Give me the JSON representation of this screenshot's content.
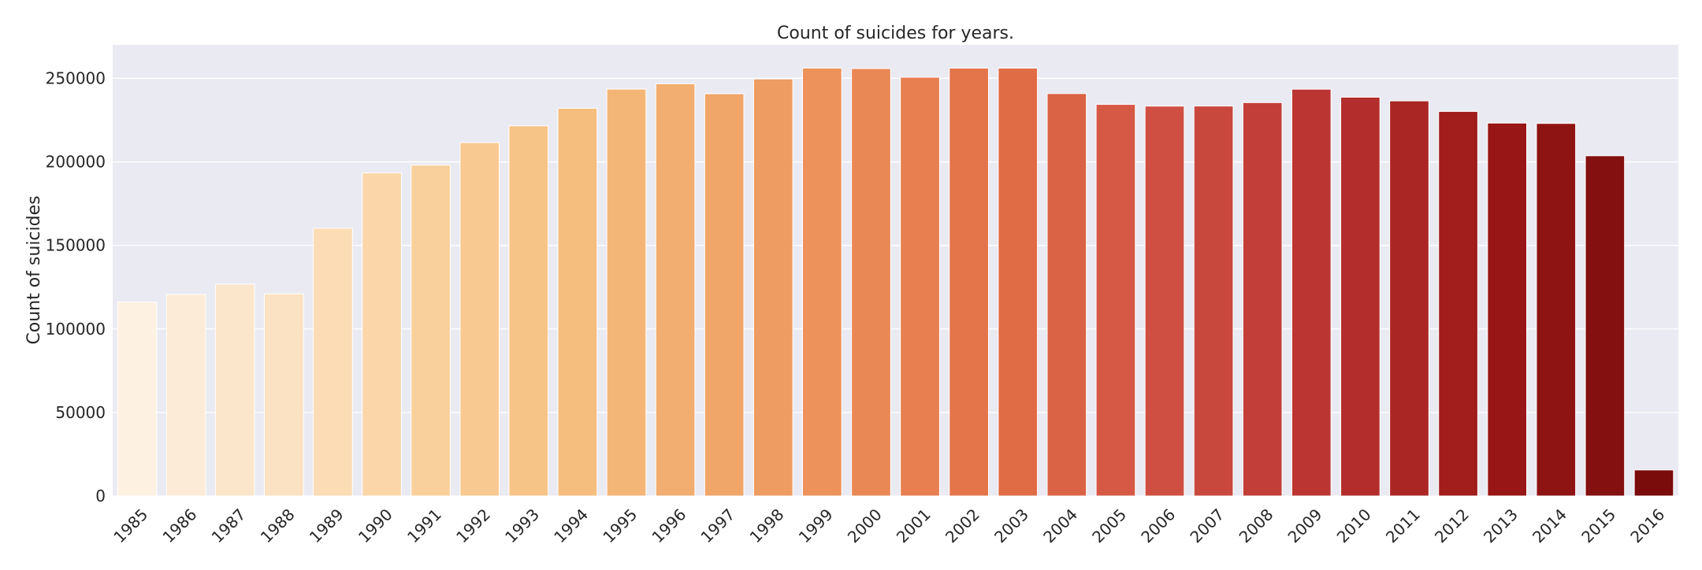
{
  "chart_data": {
    "type": "bar",
    "title": "Count of suicides for years.",
    "xlabel": "",
    "ylabel": "Count of suicides",
    "categories": [
      "1985",
      "1986",
      "1987",
      "1988",
      "1989",
      "1990",
      "1991",
      "1992",
      "1993",
      "1994",
      "1995",
      "1996",
      "1997",
      "1998",
      "1999",
      "2000",
      "2001",
      "2002",
      "2003",
      "2004",
      "2005",
      "2006",
      "2007",
      "2008",
      "2009",
      "2010",
      "2011",
      "2012",
      "2013",
      "2014",
      "2015",
      "2016"
    ],
    "values": [
      116063,
      120670,
      126842,
      121026,
      160244,
      193361,
      198020,
      211473,
      221565,
      232063,
      243544,
      246725,
      240745,
      249591,
      256119,
      255832,
      250652,
      256095,
      256079,
      240861,
      234375,
      233361,
      233408,
      235447,
      243487,
      238702,
      236484,
      230160,
      223199,
      222984,
      203640,
      15603
    ],
    "ylim": [
      0,
      270000
    ],
    "yticks": [
      0,
      50000,
      100000,
      150000,
      200000,
      250000
    ],
    "ytick_labels": [
      "0",
      "50000",
      "100000",
      "150000",
      "200000",
      "250000"
    ],
    "grid": true,
    "background": "#eaeaf2",
    "gridline_color": "#ffffff",
    "palette": "OrRd",
    "bar_colors": [
      "#fdf1e2",
      "#fcebd6",
      "#fce6cb",
      "#fbe2c2",
      "#fbdcb5",
      "#fad6a8",
      "#f9d09c",
      "#f8ca91",
      "#f7c488",
      "#f5bd7e",
      "#f4b677",
      "#f2ad70",
      "#f0a569",
      "#ee9c62",
      "#ec925a",
      "#e98855",
      "#e77f50",
      "#e4754a",
      "#e06c45",
      "#da6345",
      "#d65945",
      "#cf5042",
      "#c8483e",
      "#c23f39",
      "#bb3632",
      "#b22d2b",
      "#aa2624",
      "#a11e1d",
      "#981716",
      "#8e1313",
      "#841010",
      "#7a0c0c"
    ]
  }
}
